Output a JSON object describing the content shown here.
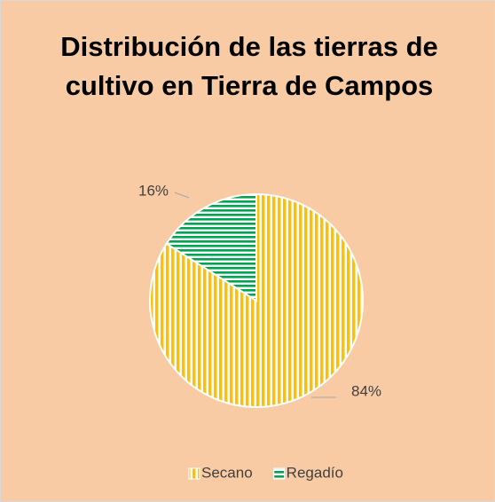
{
  "chart_data": {
    "type": "pie",
    "title": "Distribución de las tierras de cultivo en Tierra de Campos",
    "categories": [
      "Secano",
      "Regadío"
    ],
    "values": [
      84,
      16
    ],
    "value_labels": [
      "84%",
      "16%"
    ],
    "colors": [
      "#FFC000",
      "#00A550"
    ],
    "legend": "bottom"
  }
}
